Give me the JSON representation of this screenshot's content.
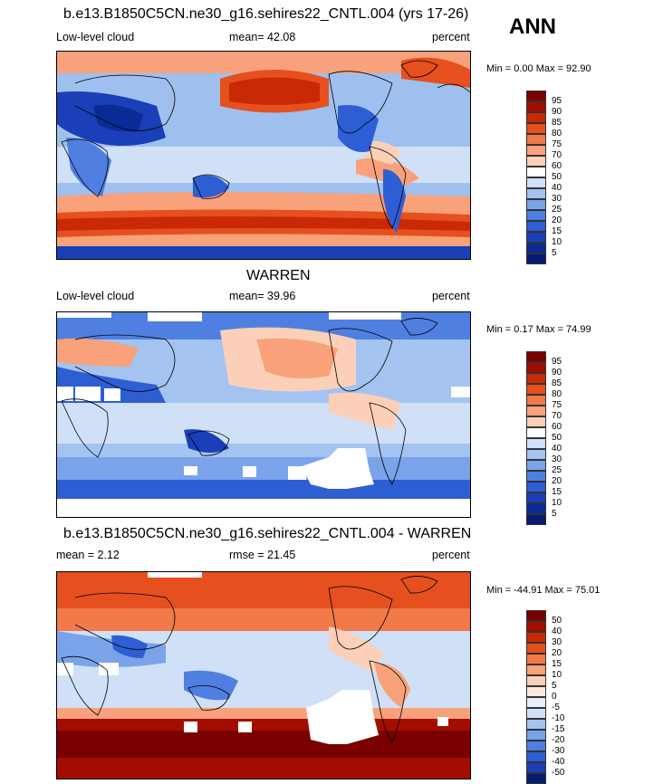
{
  "season": "ANN",
  "panels": [
    {
      "title": "b.e13.B1850C5CN.ne30_g16.sehires22_CNTL.004 (yrs 17-26)",
      "left_label": "Low-level cloud",
      "center_label": "mean=  42.08",
      "right_label": "percent",
      "minmax": "Min =   0.00 Max =  92.90",
      "colorbar_labels": [
        "95",
        "90",
        "85",
        "80",
        "75",
        "70",
        "60",
        "50",
        "40",
        "30",
        "25",
        "20",
        "15",
        "10",
        "5"
      ]
    },
    {
      "title": "WARREN",
      "left_label": "Low-level cloud",
      "center_label": "mean=  39.96",
      "right_label": "percent",
      "minmax": "Min =   0.17 Max =  74.99",
      "colorbar_labels": [
        "95",
        "90",
        "85",
        "80",
        "75",
        "70",
        "60",
        "50",
        "40",
        "30",
        "25",
        "20",
        "15",
        "10",
        "5"
      ]
    },
    {
      "title": "b.e13.B1850C5CN.ne30_g16.sehires22_CNTL.004 - WARREN",
      "left_label": "mean =   2.12",
      "center_label": "rmse =  21.45",
      "right_label": "percent",
      "minmax": "Min = -44.91 Max =  75.01",
      "colorbar_labels": [
        "50",
        "40",
        "30",
        "20",
        "15",
        "10",
        "5",
        "0",
        "-5",
        "-10",
        "-15",
        "-20",
        "-30",
        "-40",
        "-50"
      ]
    }
  ],
  "colors": {
    "abs_scale": [
      "#7a0000",
      "#a30d00",
      "#c92a05",
      "#e5501e",
      "#f2794a",
      "#f8a17a",
      "#fcd0b8",
      "#ffffff",
      "#cfe0f7",
      "#a4c3f0",
      "#7aa3ea",
      "#4f7fe0",
      "#2e5ed4",
      "#1a3fb8",
      "#0a2a96",
      "#061a70"
    ],
    "diff_scale": [
      "#7a0000",
      "#a30d00",
      "#c92a05",
      "#e5501e",
      "#f2794a",
      "#f8a17a",
      "#fcd0b8",
      "#fde9dc",
      "#e6eefb",
      "#cfe0f7",
      "#a4c3f0",
      "#7aa3ea",
      "#4f7fe0",
      "#2e5ed4",
      "#1a3fb8",
      "#061a70"
    ],
    "land_outline": "#000000"
  }
}
